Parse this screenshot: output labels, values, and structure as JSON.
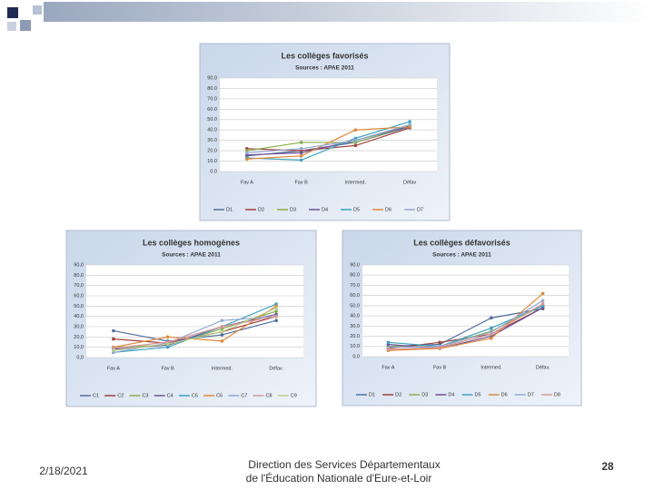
{
  "chart_data": [
    {
      "type": "line",
      "title": "Les collèges favorisés",
      "subtitle": "Sources : APAE 2011",
      "categories": [
        "Fav A",
        "Fav B",
        "Intermed.",
        "Défav"
      ],
      "ylim": [
        0,
        90
      ],
      "yticks": [
        {
          "value": 0,
          "label": "0.0"
        },
        {
          "value": 10,
          "label": "10.0"
        },
        {
          "value": 20,
          "label": "20.0"
        },
        {
          "value": 30,
          "label": "30.0"
        },
        {
          "value": 40,
          "label": "40.0"
        },
        {
          "value": 50,
          "label": "50.0"
        },
        {
          "value": 60,
          "label": "60.0"
        },
        {
          "value": 70,
          "label": "70.0"
        },
        {
          "value": 80,
          "label": "80.0"
        },
        {
          "value": 90,
          "label": "90.0"
        }
      ],
      "grid": true,
      "series": [
        {
          "name": "D1",
          "color": "#4f6d9e",
          "values": [
            15,
            20,
            28,
            43
          ]
        },
        {
          "name": "D2",
          "color": "#a0403a",
          "values": [
            22,
            20,
            25,
            42
          ]
        },
        {
          "name": "D3",
          "color": "#8bae4c",
          "values": [
            20,
            28,
            28,
            44
          ]
        },
        {
          "name": "D4",
          "color": "#6d5399",
          "values": [
            16,
            18,
            30,
            44
          ]
        },
        {
          "name": "D5",
          "color": "#3fa3c0",
          "values": [
            13,
            11,
            32,
            48
          ]
        },
        {
          "name": "D6",
          "color": "#e0893a",
          "values": [
            12,
            15,
            40,
            43
          ]
        },
        {
          "name": "D7",
          "color": "#93a9d1",
          "values": [
            18,
            22,
            30,
            45
          ]
        }
      ]
    },
    {
      "type": "line",
      "title": "Les collèges homogènes",
      "subtitle": "Sources : APAE 2011",
      "categories": [
        "Fav A",
        "Fav B",
        "Intermed.",
        "Défav."
      ],
      "ylim": [
        0,
        90
      ],
      "yticks": [
        {
          "value": 0,
          "label": "0,0"
        },
        {
          "value": 10,
          "label": "10,0"
        },
        {
          "value": 20,
          "label": "20,0"
        },
        {
          "value": 30,
          "label": "30,0"
        },
        {
          "value": 40,
          "label": "40,0"
        },
        {
          "value": 50,
          "label": "50,0"
        },
        {
          "value": 60,
          "label": "60,0"
        },
        {
          "value": 70,
          "label": "70,0"
        },
        {
          "value": 80,
          "label": "80,0"
        },
        {
          "value": 90,
          "label": "90,0"
        }
      ],
      "grid": true,
      "series": [
        {
          "name": "C1",
          "color": "#4f6d9e",
          "values": [
            26,
            16,
            22,
            36
          ]
        },
        {
          "name": "C2",
          "color": "#a0403a",
          "values": [
            18,
            14,
            25,
            40
          ]
        },
        {
          "name": "C3",
          "color": "#8bae4c",
          "values": [
            10,
            12,
            28,
            45
          ]
        },
        {
          "name": "C4",
          "color": "#6d5399",
          "values": [
            8,
            12,
            30,
            42
          ]
        },
        {
          "name": "C5",
          "color": "#3fa3c0",
          "values": [
            5,
            10,
            30,
            52
          ]
        },
        {
          "name": "C6",
          "color": "#e0893a",
          "values": [
            10,
            20,
            16,
            50
          ]
        },
        {
          "name": "C7",
          "color": "#93a9d1",
          "values": [
            5,
            14,
            36,
            40
          ]
        },
        {
          "name": "C8",
          "color": "#d99796",
          "values": [
            9,
            15,
            30,
            40
          ]
        },
        {
          "name": "C9",
          "color": "#b9cf8c",
          "values": [
            7,
            13,
            25,
            48
          ]
        }
      ]
    },
    {
      "type": "line",
      "title": "Les collèges défavorisés",
      "subtitle": "Sources : APAE 2011",
      "categories": [
        "Fav A",
        "Fav B",
        "Intermed.",
        "Défav."
      ],
      "ylim": [
        0,
        90
      ],
      "yticks": [
        {
          "value": 0,
          "label": "0.0"
        },
        {
          "value": 10,
          "label": "10.0"
        },
        {
          "value": 20,
          "label": "20.0"
        },
        {
          "value": 30,
          "label": "30.0"
        },
        {
          "value": 40,
          "label": "40.0"
        },
        {
          "value": 50,
          "label": "50.0"
        },
        {
          "value": 60,
          "label": "60.0"
        },
        {
          "value": 70,
          "label": "70.0"
        },
        {
          "value": 80,
          "label": "80.0"
        },
        {
          "value": 90,
          "label": "90.0"
        }
      ],
      "grid": true,
      "series": [
        {
          "name": "D1",
          "color": "#4f6d9e",
          "values": [
            10,
            12,
            38,
            47
          ]
        },
        {
          "name": "D2",
          "color": "#a0403a",
          "values": [
            8,
            14,
            22,
            48
          ]
        },
        {
          "name": "D3",
          "color": "#8bae4c",
          "values": [
            10,
            10,
            25,
            50
          ]
        },
        {
          "name": "D4",
          "color": "#6d5399",
          "values": [
            12,
            8,
            20,
            48
          ]
        },
        {
          "name": "D5",
          "color": "#3fa3c0",
          "values": [
            14,
            10,
            28,
            50
          ]
        },
        {
          "name": "D6",
          "color": "#e0893a",
          "values": [
            6,
            8,
            18,
            62
          ]
        },
        {
          "name": "D7",
          "color": "#93a9d1",
          "values": [
            9,
            10,
            24,
            55
          ]
        },
        {
          "name": "D8",
          "color": "#d99796",
          "values": [
            7,
            9,
            22,
            52
          ]
        }
      ]
    }
  ],
  "footer": {
    "date": "2/18/2021",
    "organization": [
      "Direction des Services Départementaux",
      "de l'Éducation Nationale d'Eure-et-Loir"
    ],
    "page_number": "28"
  }
}
